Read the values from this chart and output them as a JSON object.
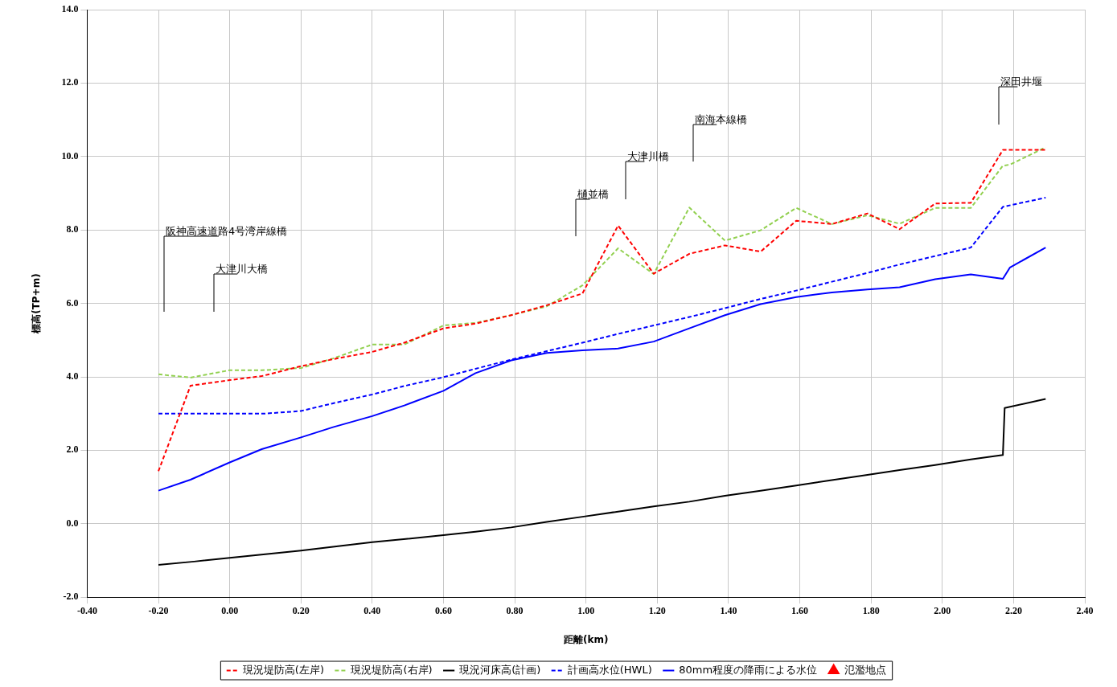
{
  "chart_data": {
    "type": "line",
    "xlabel": "距離(km)",
    "ylabel": "標高(TP+m)",
    "xlim": [
      -0.4,
      2.4
    ],
    "xticks": [
      {
        "value": -0.4,
        "label": "-0.40"
      },
      {
        "value": -0.2,
        "label": "-0.20"
      },
      {
        "value": 0,
        "label": "0.00"
      },
      {
        "value": 0.2,
        "label": "0.20"
      },
      {
        "value": 0.4,
        "label": "0.40"
      },
      {
        "value": 0.6,
        "label": "0.60"
      },
      {
        "value": 0.8,
        "label": "0.80"
      },
      {
        "value": 1,
        "label": "1.00"
      },
      {
        "value": 1.2,
        "label": "1.20"
      },
      {
        "value": 1.4,
        "label": "1.40"
      },
      {
        "value": 1.6,
        "label": "1.60"
      },
      {
        "value": 1.8,
        "label": "1.80"
      },
      {
        "value": 2,
        "label": "2.00"
      },
      {
        "value": 2.2,
        "label": "2.20"
      },
      {
        "value": 2.4,
        "label": "2.40"
      }
    ],
    "ylim": [
      -2,
      14
    ],
    "yticks": [
      {
        "value": -2,
        "label": "-2.0"
      },
      {
        "value": 0,
        "label": "0.0"
      },
      {
        "value": 2,
        "label": "2.0"
      },
      {
        "value": 4,
        "label": "4.0"
      },
      {
        "value": 6,
        "label": "6.0"
      },
      {
        "value": 8,
        "label": "8.0"
      },
      {
        "value": 10,
        "label": "10.0"
      },
      {
        "value": 12,
        "label": "12.0"
      },
      {
        "value": 14,
        "label": "14.0"
      }
    ],
    "grid": true,
    "legend": "bottom",
    "marker": "none",
    "series": [
      {
        "name": "現況堤防高(左岸)",
        "color": "#ff0000",
        "line_style": "dashed",
        "x": [
          -0.2,
          -0.11,
          0,
          0.09,
          0.2,
          0.29,
          0.4,
          0.49,
          0.6,
          0.69,
          0.79,
          0.89,
          0.99,
          1.09,
          1.19,
          1.29,
          1.39,
          1.49,
          1.59,
          1.69,
          1.79,
          1.88,
          1.98,
          2.08,
          2.17,
          2.29
        ],
        "values": [
          1.43,
          3.76,
          3.91,
          4.02,
          4.29,
          4.48,
          4.68,
          4.93,
          5.32,
          5.45,
          5.68,
          5.95,
          6.27,
          8.12,
          6.81,
          7.35,
          7.58,
          7.41,
          8.25,
          8.16,
          8.45,
          8.02,
          8.72,
          8.74,
          10.18,
          10.18
        ]
      },
      {
        "name": "現況堤防高(右岸)",
        "color": "#92d050",
        "line_style": "dashed",
        "x": [
          -0.2,
          -0.11,
          0,
          0.09,
          0.2,
          0.29,
          0.4,
          0.49,
          0.6,
          0.69,
          0.79,
          0.89,
          0.99,
          1.09,
          1.19,
          1.29,
          1.39,
          1.49,
          1.59,
          1.69,
          1.79,
          1.88,
          1.98,
          2.08,
          2.17,
          2.19,
          2.29
        ],
        "values": [
          4.07,
          3.98,
          4.18,
          4.18,
          4.24,
          4.5,
          4.88,
          4.88,
          5.4,
          5.47,
          5.68,
          5.92,
          6.49,
          7.5,
          6.8,
          8.61,
          7.71,
          7.99,
          8.6,
          8.16,
          8.4,
          8.17,
          8.6,
          8.6,
          9.75,
          9.78,
          10.25
        ]
      },
      {
        "name": "現況河床高(計画)",
        "color": "#000000",
        "line_style": "solid",
        "x": [
          -0.2,
          -0.1,
          0,
          0.1,
          0.2,
          0.29,
          0.4,
          0.5,
          0.6,
          0.69,
          0.79,
          0.89,
          0.99,
          1.09,
          1.19,
          1.29,
          1.39,
          1.49,
          1.59,
          1.69,
          1.79,
          1.88,
          1.98,
          2.08,
          2.17,
          2.175,
          2.29
        ],
        "values": [
          -1.12,
          -1.03,
          -0.93,
          -0.83,
          -0.73,
          -0.63,
          -0.5,
          -0.41,
          -0.31,
          -0.22,
          -0.1,
          0.05,
          0.19,
          0.33,
          0.47,
          0.6,
          0.76,
          0.9,
          1.04,
          1.19,
          1.33,
          1.46,
          1.6,
          1.75,
          1.87,
          3.15,
          3.4
        ]
      },
      {
        "name": "計画高水位(HWL)",
        "color": "#0000ff",
        "line_style": "dashed",
        "x": [
          -0.2,
          -0.1,
          0,
          0.1,
          0.2,
          0.29,
          0.4,
          0.49,
          0.6,
          0.69,
          0.79,
          0.89,
          0.99,
          1.09,
          1.19,
          1.29,
          1.39,
          1.49,
          1.59,
          1.69,
          1.79,
          1.88,
          1.98,
          2.08,
          2.17,
          2.29
        ],
        "values": [
          3,
          3,
          3,
          3,
          3.07,
          3.28,
          3.52,
          3.75,
          3.99,
          4.22,
          4.47,
          4.7,
          4.93,
          5.17,
          5.4,
          5.63,
          5.87,
          6.12,
          6.35,
          6.59,
          6.83,
          7.06,
          7.29,
          7.52,
          8.63,
          8.88
        ]
      },
      {
        "name": "80mm程度の降雨による水位",
        "color": "#0000ff",
        "line_style": "solid",
        "x": [
          -0.2,
          -0.11,
          0,
          0.09,
          0.2,
          0.29,
          0.4,
          0.49,
          0.6,
          0.69,
          0.79,
          0.89,
          0.99,
          1.09,
          1.19,
          1.29,
          1.39,
          1.49,
          1.59,
          1.69,
          1.79,
          1.88,
          1.98,
          2.08,
          2.17,
          2.19,
          2.29
        ],
        "values": [
          0.9,
          1.2,
          1.67,
          2.03,
          2.35,
          2.63,
          2.93,
          3.22,
          3.62,
          4.1,
          4.45,
          4.65,
          4.72,
          4.77,
          4.96,
          5.32,
          5.68,
          5.98,
          6.17,
          6.3,
          6.38,
          6.44,
          6.66,
          6.79,
          6.67,
          6.98,
          7.52
        ]
      },
      {
        "name": "氾濫地点",
        "color": "#ff0000",
        "type": "scatter",
        "marker": "triangle"
      }
    ],
    "annotations": [
      "阪神高速道路4号湾岸線橋",
      "大津川大橋",
      "樋並橋",
      "大津川橋",
      "南海本線橋",
      "深田井堰"
    ]
  }
}
